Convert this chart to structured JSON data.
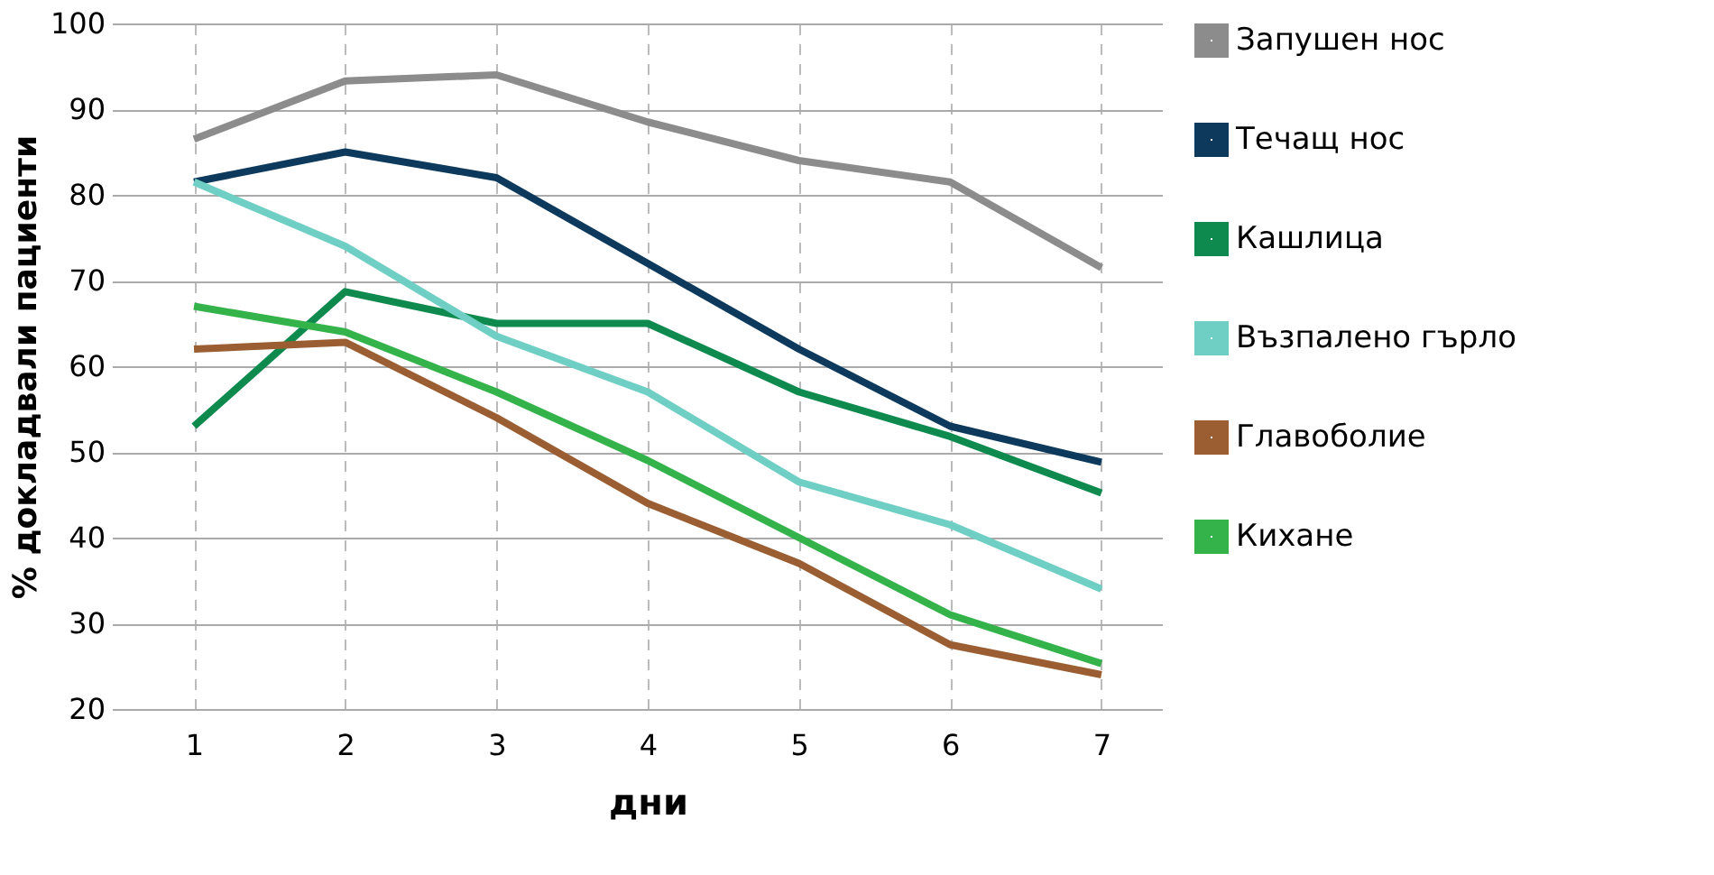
{
  "chart_data": {
    "type": "line",
    "xlabel": "дни",
    "ylabel": "% докладвали пациенти",
    "x": [
      1,
      2,
      3,
      4,
      5,
      6,
      7
    ],
    "series": [
      {
        "name": "Запушен нос",
        "color": "#8c8c8c",
        "values": [
          86.5,
          93.3,
          94,
          88.5,
          84,
          81.5,
          71.5
        ]
      },
      {
        "name": "Течащ нос",
        "color": "#0d3a5c",
        "values": [
          81.5,
          85,
          82,
          72,
          62,
          53,
          48.8
        ]
      },
      {
        "name": "Кашлица",
        "color": "#0f8a4e",
        "values": [
          53,
          68.7,
          65,
          65,
          57,
          51.8,
          45.2
        ]
      },
      {
        "name": "Възпалено гърло",
        "color": "#6fcfc4",
        "values": [
          81.5,
          74,
          63.5,
          57,
          46.5,
          41.5,
          34
        ]
      },
      {
        "name": "Главоболие",
        "color": "#9a5e32",
        "values": [
          62,
          62.8,
          54,
          44,
          37,
          27.5,
          24
        ]
      },
      {
        "name": "Кихане",
        "color": "#33b34a",
        "values": [
          67,
          64,
          57,
          49,
          40,
          31,
          25.3
        ]
      }
    ],
    "xlim": [
      0.6,
      7.4
    ],
    "xticks": [
      1,
      2,
      3,
      4,
      5,
      6,
      7
    ],
    "ylim": [
      20,
      100
    ],
    "yticks": [
      20,
      30,
      40,
      50,
      60,
      70,
      80,
      90,
      100
    ],
    "grid": true,
    "legend": "right",
    "marker": "none",
    "line_style": "solid"
  }
}
